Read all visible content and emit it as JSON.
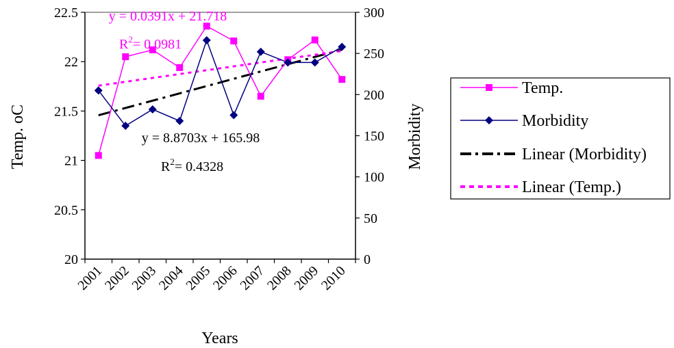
{
  "chart_data": {
    "type": "line",
    "categories": [
      "2001",
      "2002",
      "2003",
      "2004",
      "2005",
      "2006",
      "2007",
      "2008",
      "2009",
      "2010"
    ],
    "xlabel": "Years",
    "ylabel_left": "Temp. oC",
    "ylabel_right": "Morbidity",
    "y_left_lim": [
      20,
      22.5
    ],
    "y_left_ticks": [
      "20",
      "20.5",
      "21",
      "21.5",
      "22",
      "22.5"
    ],
    "y_right_lim": [
      0,
      300
    ],
    "y_right_ticks": [
      "0",
      "50",
      "100",
      "150",
      "200",
      "250",
      "300"
    ],
    "grid": false,
    "legend_position": "right",
    "series": [
      {
        "name": "Temp.",
        "axis": "left",
        "marker": "square",
        "color": "#ff00ff",
        "values": [
          21.05,
          22.05,
          22.12,
          21.94,
          22.36,
          22.21,
          21.65,
          22.02,
          22.22,
          21.82
        ]
      },
      {
        "name": "Morbidity",
        "axis": "right",
        "marker": "diamond",
        "color": "#000080",
        "values": [
          205,
          162,
          182,
          168,
          266,
          175,
          252,
          239,
          239,
          258
        ]
      }
    ],
    "trendlines": [
      {
        "name": "Linear (Morbidity)",
        "axis": "right",
        "color": "#000000",
        "style": "dash-dot",
        "equation": "y = 8.8703x + 165.98",
        "r2_value": "= 0.4328",
        "slope": 8.8703,
        "intercept": 165.98
      },
      {
        "name": "Linear (Temp.)",
        "axis": "left",
        "color": "#ff00ff",
        "style": "dotted",
        "equation": "y = 0.0391x + 21.718",
        "r2_value": "= 0.0981",
        "slope": 0.0391,
        "intercept": 21.718
      }
    ],
    "r2_symbol": "R",
    "r2_power": "2"
  }
}
